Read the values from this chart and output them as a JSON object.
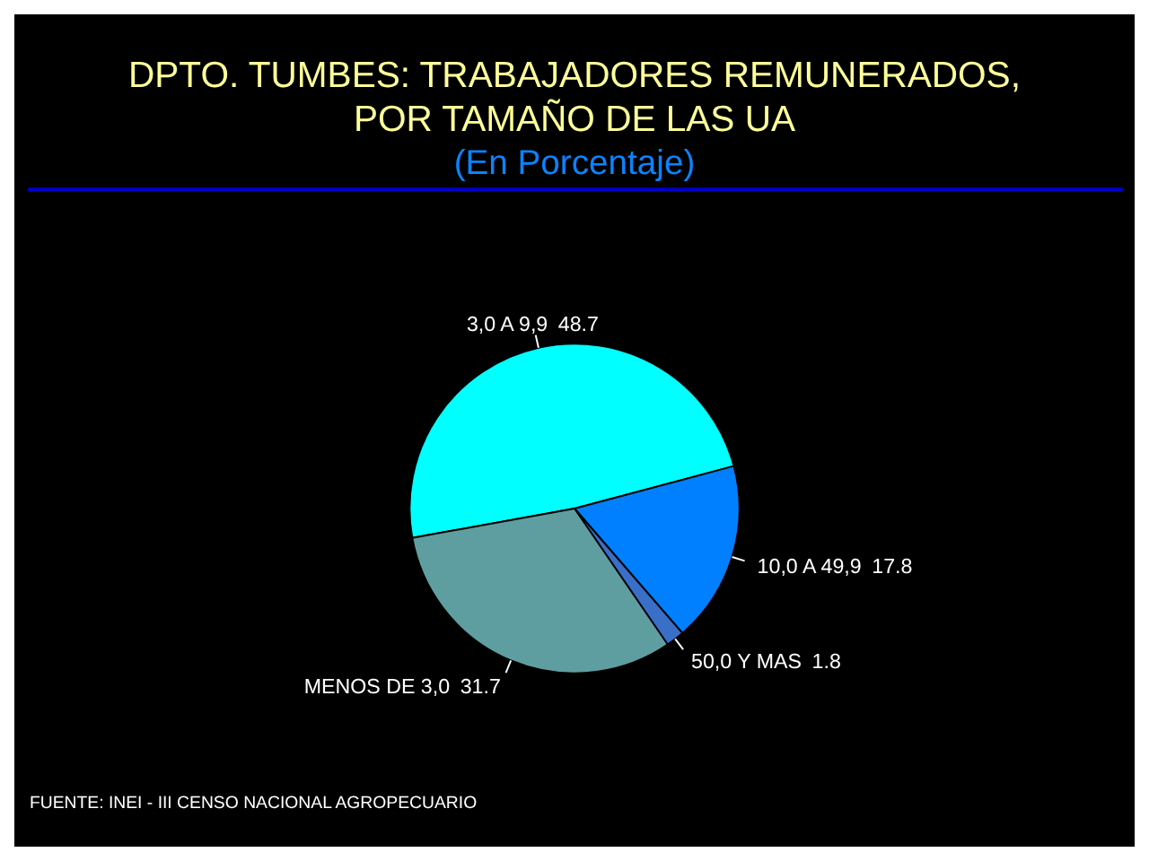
{
  "chart_data": {
    "type": "pie",
    "title": "DPTO. TUMBES: TRABAJADORES REMUNERADOS, POR TAMAÑO DE LAS UA",
    "subtitle": "(En Porcentaje)",
    "categories": [
      "3,0 A 9,9",
      "10,0 A 49,9",
      "50,0 Y MAS",
      "MENOS DE 3,0"
    ],
    "values": [
      48.7,
      17.8,
      1.8,
      31.7
    ],
    "colors": [
      "#00ffff",
      "#0080ff",
      "#3a6fc8",
      "#5f9ea0"
    ],
    "data_labels": true,
    "annotations": [
      "FUENTE: INEI - III CENSO NACIONAL AGROPECUARIO"
    ]
  }
}
